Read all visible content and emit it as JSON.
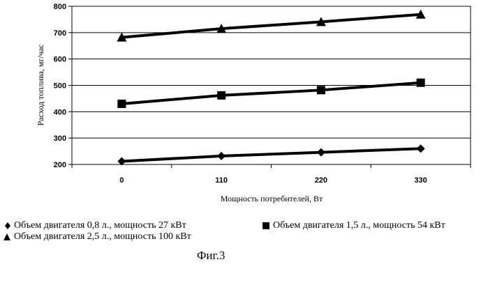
{
  "chart_data": {
    "type": "line",
    "x": [
      0,
      110,
      220,
      330
    ],
    "series": [
      {
        "name": "Объем двигателя 0,8 л., мощность 27 кВт",
        "marker": "diamond",
        "values": [
          212,
          232,
          246,
          260
        ]
      },
      {
        "name": "Объем двигателя 1,5 л., мощность 54 кВт",
        "marker": "square",
        "values": [
          430,
          462,
          482,
          510
        ]
      },
      {
        "name": "Объем двигателя 2,5 л., мощность 100 кВт",
        "marker": "triangle",
        "values": [
          682,
          715,
          741,
          769
        ]
      }
    ],
    "xlabel": "Мощность  потребителей, Вт",
    "ylabel": "Расход топлива, мг/час",
    "ylim": [
      200,
      800
    ],
    "yticks": [
      200,
      300,
      400,
      500,
      600,
      700,
      800
    ],
    "grid": "horizontal",
    "legend_position": "bottom"
  },
  "caption": "Фиг.3",
  "colors": {
    "line": "#000000",
    "grid": "#000000"
  }
}
